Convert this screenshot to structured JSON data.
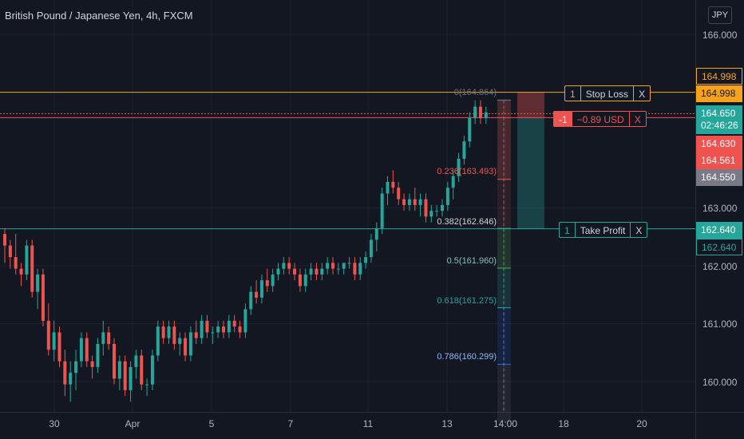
{
  "header": {
    "title": "British Pound / Japanese Yen, 4h, FXCM",
    "currency": "JPY"
  },
  "y_axis": {
    "ticks": [
      "166.000",
      "163.000",
      "162.000",
      "161.000",
      "160.000"
    ]
  },
  "x_axis": {
    "ticks": [
      "30",
      "Apr",
      "5",
      "7",
      "11",
      "13",
      "14:00",
      "18",
      "20"
    ]
  },
  "price_tags": {
    "stop_loss_price_a": "164.998",
    "stop_loss_price_b": "164.998",
    "current_price": "164.650",
    "countdown": "02:46:26",
    "bid": "164.630",
    "ask_a": "164.561",
    "ask_b": "164.550",
    "take_profit_a": "162.640",
    "take_profit_b": "162.640"
  },
  "orders": {
    "stop_loss": {
      "qty": "1",
      "label": "Stop Loss",
      "close": "X"
    },
    "position": {
      "qty": "-1",
      "pnl": "−0.89 USD",
      "close": "X"
    },
    "take_profit": {
      "qty": "1",
      "label": "Take Profit",
      "close": "X"
    }
  },
  "fib_levels": {
    "f0": "0(164.864)",
    "f236": "0.236(163.493)",
    "f382": "0.382(162.646)",
    "f5": "0.5(161.960)",
    "f618": "0.618(161.275)",
    "f786": "0.786(160.299)"
  },
  "colors": {
    "up": "#26a69a",
    "down": "#ef5350",
    "stop": "#f7a21b",
    "bg": "#131722"
  },
  "chart_data": {
    "type": "candlestick",
    "symbol": "GBPJPY",
    "timeframe": "4h",
    "ylim": [
      159.5,
      166.4
    ],
    "candles": [
      [
        162.55,
        162.65,
        162.05,
        162.35
      ],
      [
        162.35,
        162.45,
        161.95,
        162.15
      ],
      [
        162.15,
        162.55,
        161.85,
        161.95
      ],
      [
        161.95,
        162.05,
        161.65,
        161.85
      ],
      [
        161.85,
        162.45,
        161.75,
        162.35
      ],
      [
        162.35,
        162.45,
        161.45,
        161.55
      ],
      [
        161.55,
        161.95,
        161.25,
        161.85
      ],
      [
        161.85,
        161.95,
        160.95,
        161.05
      ],
      [
        161.05,
        161.35,
        160.45,
        160.55
      ],
      [
        160.55,
        161.05,
        160.35,
        160.85
      ],
      [
        160.85,
        160.95,
        160.25,
        160.35
      ],
      [
        160.35,
        160.55,
        159.75,
        159.95
      ],
      [
        159.95,
        160.35,
        159.65,
        160.15
      ],
      [
        160.15,
        160.55,
        159.85,
        160.35
      ],
      [
        160.35,
        160.85,
        160.25,
        160.75
      ],
      [
        160.75,
        160.85,
        160.25,
        160.35
      ],
      [
        160.35,
        160.45,
        160.05,
        160.25
      ],
      [
        160.25,
        160.75,
        160.15,
        160.65
      ],
      [
        160.65,
        161.05,
        160.45,
        160.85
      ],
      [
        160.85,
        160.95,
        160.55,
        160.65
      ],
      [
        160.65,
        160.75,
        159.95,
        160.05
      ],
      [
        160.05,
        160.45,
        159.85,
        160.35
      ],
      [
        160.35,
        160.45,
        159.75,
        159.85
      ],
      [
        159.85,
        160.35,
        159.65,
        160.25
      ],
      [
        160.25,
        160.55,
        160.05,
        160.45
      ],
      [
        160.45,
        160.55,
        159.85,
        159.95
      ],
      [
        159.95,
        160.05,
        159.75,
        159.95
      ],
      [
        159.95,
        160.55,
        159.85,
        160.45
      ],
      [
        160.45,
        161.05,
        160.35,
        160.95
      ],
      [
        160.95,
        161.05,
        160.65,
        160.75
      ],
      [
        160.75,
        161.05,
        160.65,
        160.95
      ],
      [
        160.95,
        161.05,
        160.55,
        160.65
      ],
      [
        160.65,
        160.85,
        160.45,
        160.75
      ],
      [
        160.75,
        160.85,
        160.35,
        160.45
      ],
      [
        160.45,
        160.95,
        160.35,
        160.85
      ],
      [
        160.85,
        161.05,
        160.65,
        160.75
      ],
      [
        160.75,
        161.15,
        160.65,
        161.05
      ],
      [
        161.05,
        161.15,
        160.75,
        160.85
      ],
      [
        160.85,
        160.95,
        160.65,
        160.85
      ],
      [
        160.85,
        161.05,
        160.75,
        160.95
      ],
      [
        160.95,
        161.05,
        160.75,
        160.85
      ],
      [
        160.85,
        161.15,
        160.75,
        161.05
      ],
      [
        161.05,
        161.15,
        160.85,
        160.95
      ],
      [
        160.95,
        161.05,
        160.75,
        160.85
      ],
      [
        160.85,
        161.35,
        160.75,
        161.25
      ],
      [
        161.25,
        161.65,
        161.15,
        161.55
      ],
      [
        161.55,
        161.75,
        161.35,
        161.45
      ],
      [
        161.45,
        161.85,
        161.35,
        161.75
      ],
      [
        161.75,
        161.95,
        161.55,
        161.65
      ],
      [
        161.65,
        161.95,
        161.55,
        161.85
      ],
      [
        161.85,
        162.05,
        161.75,
        161.95
      ],
      [
        161.95,
        162.15,
        161.85,
        162.05
      ],
      [
        162.05,
        162.15,
        161.85,
        161.95
      ],
      [
        161.95,
        162.05,
        161.75,
        161.85
      ],
      [
        161.85,
        161.95,
        161.55,
        161.65
      ],
      [
        161.65,
        161.95,
        161.55,
        161.85
      ],
      [
        161.85,
        162.05,
        161.75,
        161.95
      ],
      [
        161.95,
        162.05,
        161.75,
        161.85
      ],
      [
        161.85,
        162.05,
        161.75,
        161.95
      ],
      [
        161.95,
        162.15,
        161.85,
        162.05
      ],
      [
        162.05,
        162.15,
        161.85,
        161.95
      ],
      [
        161.95,
        162.05,
        161.85,
        161.95
      ],
      [
        161.95,
        162.05,
        161.85,
        162.05
      ],
      [
        162.05,
        162.15,
        161.95,
        162.05
      ],
      [
        162.05,
        162.15,
        161.75,
        161.85
      ],
      [
        161.85,
        162.15,
        161.75,
        162.05
      ],
      [
        162.05,
        162.25,
        161.95,
        162.15
      ],
      [
        162.15,
        162.55,
        162.05,
        162.45
      ],
      [
        162.45,
        162.75,
        162.25,
        162.65
      ],
      [
        162.65,
        163.35,
        162.55,
        163.25
      ],
      [
        163.25,
        163.55,
        163.05,
        163.45
      ],
      [
        163.45,
        163.65,
        163.25,
        163.35
      ],
      [
        163.35,
        163.45,
        163.05,
        163.15
      ],
      [
        163.15,
        163.25,
        162.95,
        163.05
      ],
      [
        163.05,
        163.25,
        162.95,
        163.15
      ],
      [
        163.15,
        163.35,
        162.95,
        163.05
      ],
      [
        163.05,
        163.25,
        162.85,
        163.15
      ],
      [
        163.15,
        163.25,
        162.75,
        162.85
      ],
      [
        162.85,
        163.05,
        162.75,
        162.95
      ],
      [
        162.95,
        163.05,
        162.85,
        162.95
      ],
      [
        162.95,
        163.15,
        162.85,
        163.05
      ],
      [
        163.05,
        163.45,
        162.95,
        163.35
      ],
      [
        163.35,
        163.65,
        163.15,
        163.55
      ],
      [
        163.55,
        163.95,
        163.45,
        163.85
      ],
      [
        163.85,
        164.25,
        163.75,
        164.15
      ],
      [
        164.15,
        164.65,
        164.05,
        164.55
      ],
      [
        164.55,
        164.86,
        164.45,
        164.75
      ],
      [
        164.75,
        164.86,
        164.45,
        164.55
      ],
      [
        164.55,
        164.75,
        164.45,
        164.65
      ]
    ],
    "levels": {
      "stop_loss": 164.998,
      "take_profit": 162.64,
      "entry": 164.561
    }
  }
}
